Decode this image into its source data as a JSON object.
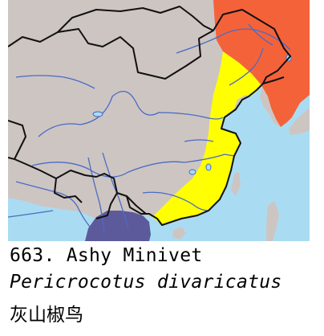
{
  "caption": {
    "number_and_name": "663. Ashy Minivet",
    "scientific_name": "Pericrocotus divaricatus",
    "chinese_name": "灰山椒鸟"
  },
  "map": {
    "colors": {
      "sea": "#a9dcf2",
      "land": "#cdc5c2",
      "breeding_range": "#f4623a",
      "passage_range": "#ffff00",
      "winter_range": "#5d5a9c",
      "rivers": "#4a6bc4",
      "borders": "#111111"
    }
  }
}
